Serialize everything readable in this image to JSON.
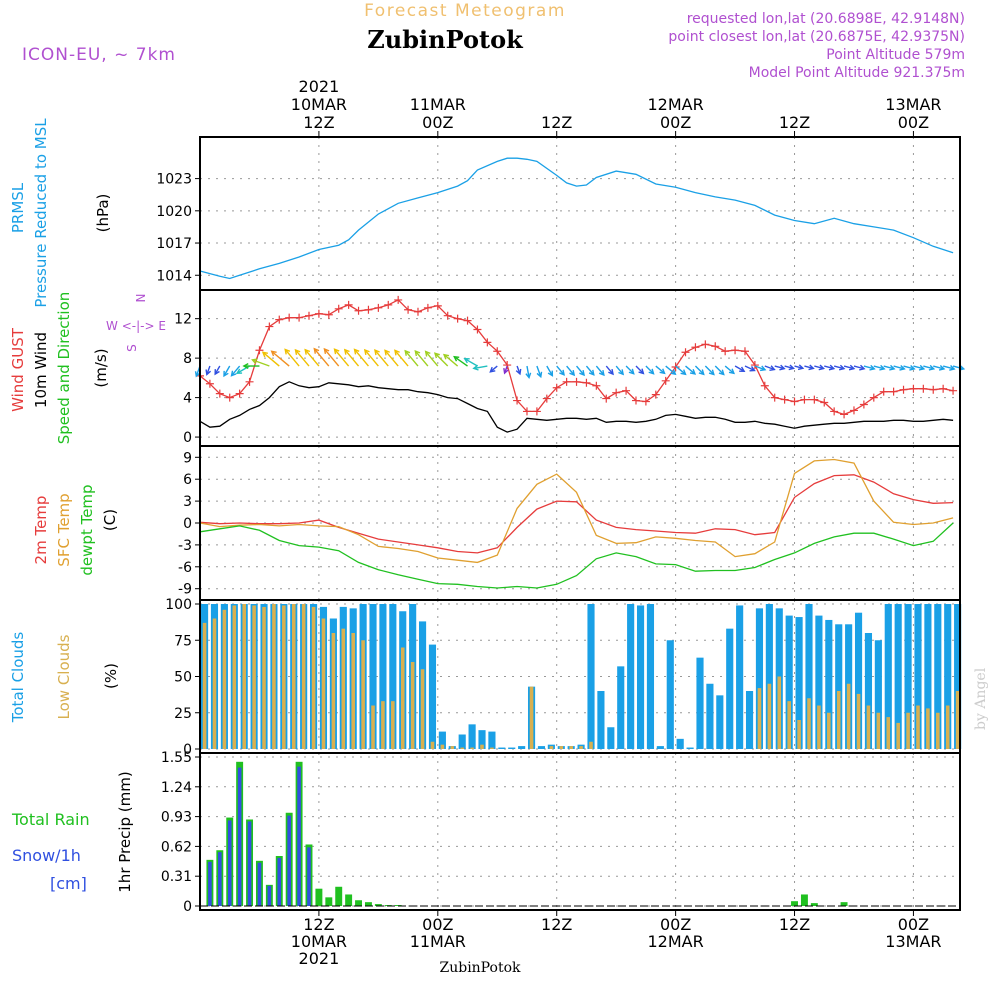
{
  "header": {
    "product": "Forecast Meteogram",
    "location": "ZubinPotok",
    "model": "ICON-EU, ~ 7km",
    "requested": "requested lon,lat (20.6898E, 42.9148N)",
    "closest": "point closest lon,lat (20.6875E, 42.9375N)",
    "altitude": "Point Altitude 579m",
    "model_altitude": "Model Point Altitude 921.375m",
    "footer": "ZubinPotok",
    "watermark": "by Angel"
  },
  "colors": {
    "pressure": "#1aa0e6",
    "gust": "#e63c3c",
    "wind": "#000000",
    "t2m": "#e63c3c",
    "sfc": "#e0a030",
    "dewpt": "#20c020",
    "total_clouds": "#1aa0e6",
    "low_clouds": "#d8b050",
    "rain": "#20c020",
    "snow": "#3050e0",
    "label_purple": "#b050d0",
    "label_tan": "#f0c070"
  },
  "time_axis": {
    "top_ticks": [
      {
        "hour": 12,
        "lines": [
          "2021",
          "10MAR",
          "12Z"
        ]
      },
      {
        "hour": 24,
        "lines": [
          "11MAR",
          "00Z"
        ]
      },
      {
        "hour": 36,
        "lines": [
          "12Z"
        ]
      },
      {
        "hour": 48,
        "lines": [
          "12MAR",
          "00Z"
        ]
      },
      {
        "hour": 60,
        "lines": [
          "12Z"
        ]
      },
      {
        "hour": 72,
        "lines": [
          "13MAR",
          "00Z"
        ]
      }
    ],
    "bottom_ticks": [
      {
        "hour": 12,
        "lines": [
          "12Z",
          "10MAR",
          "2021"
        ]
      },
      {
        "hour": 24,
        "lines": [
          "00Z",
          "11MAR"
        ]
      },
      {
        "hour": 36,
        "lines": [
          "12Z"
        ]
      },
      {
        "hour": 48,
        "lines": [
          "00Z",
          "12MAR"
        ]
      },
      {
        "hour": 60,
        "lines": [
          "12Z"
        ]
      },
      {
        "hour": 72,
        "lines": [
          "00Z",
          "13MAR"
        ]
      }
    ]
  },
  "panels": {
    "pressure": {
      "labels": [
        "PRMSL",
        "Pressure Reduced to MSL"
      ],
      "unit": "(hPa)"
    },
    "wind": {
      "labels": [
        "Wind GUST",
        "10m Wind",
        "Speed and Direction"
      ],
      "unit": "(m/s)",
      "compass": [
        "N",
        "W <-|-> E",
        "S"
      ]
    },
    "temp": {
      "labels": [
        "2m Temp",
        "SFC Temp",
        "dewpt Temp"
      ],
      "unit": "(C)"
    },
    "clouds": {
      "labels": [
        "Total Clouds",
        "Low Clouds"
      ],
      "unit": "(%)"
    },
    "precip": {
      "labels": [
        "Total  Rain",
        "Snow/1h",
        "[cm]"
      ],
      "unit": "1hr Precip (mm)"
    }
  },
  "chart_data": [
    {
      "type": "line",
      "title": "PRMSL Pressure Reduced to MSL",
      "ylabel": "(hPa)",
      "ylim": [
        1013,
        1026.5
      ],
      "yticks": [
        1014,
        1017,
        1020,
        1023
      ],
      "x_hours": [
        0,
        2,
        3,
        4,
        6,
        8,
        10,
        12,
        14,
        15,
        16,
        18,
        19,
        20,
        22,
        24,
        26,
        27,
        28,
        30,
        31,
        32,
        33,
        34,
        36,
        37,
        38,
        39,
        40,
        42,
        44,
        46,
        48,
        50,
        52,
        54,
        56,
        58,
        60,
        62,
        64,
        66,
        68,
        70,
        72,
        74,
        76
      ],
      "series": [
        {
          "name": "PRMSL",
          "values": [
            1014.4,
            1013.9,
            1013.7,
            1014.0,
            1014.6,
            1015.1,
            1015.7,
            1016.4,
            1016.8,
            1017.3,
            1018.2,
            1019.7,
            1020.2,
            1020.7,
            1021.2,
            1021.7,
            1022.3,
            1022.8,
            1023.8,
            1024.6,
            1024.9,
            1024.9,
            1024.8,
            1024.6,
            1023.3,
            1022.6,
            1022.3,
            1022.4,
            1023.1,
            1023.7,
            1023.4,
            1022.5,
            1022.2,
            1021.7,
            1021.3,
            1021.0,
            1020.5,
            1019.6,
            1019.1,
            1018.8,
            1019.3,
            1018.8,
            1018.5,
            1018.2,
            1017.5,
            1016.7,
            1016.1
          ]
        }
      ]
    },
    {
      "type": "line",
      "title": "Wind GUST / 10m Wind Speed and Direction",
      "ylabel": "(m/s)",
      "ylim": [
        -0.5,
        14.5
      ],
      "yticks": [
        0,
        4,
        8,
        12
      ],
      "x_hours": [
        0,
        1,
        2,
        3,
        4,
        5,
        6,
        7,
        8,
        9,
        10,
        11,
        12,
        13,
        14,
        15,
        16,
        17,
        18,
        19,
        20,
        21,
        22,
        23,
        24,
        25,
        26,
        27,
        28,
        29,
        30,
        31,
        32,
        33,
        34,
        35,
        36,
        37,
        38,
        39,
        40,
        41,
        42,
        43,
        44,
        45,
        46,
        47,
        48,
        49,
        50,
        51,
        52,
        53,
        54,
        55,
        56,
        57,
        58,
        59,
        60,
        61,
        62,
        63,
        64,
        65,
        66,
        67,
        68,
        69,
        70,
        71,
        72,
        73,
        74,
        75,
        76
      ],
      "series": [
        {
          "name": "Wind GUST",
          "values": [
            6.2,
            5.4,
            4.4,
            4.0,
            4.4,
            5.6,
            8.8,
            11.2,
            11.9,
            12.1,
            12.1,
            12.3,
            12.5,
            12.4,
            13.0,
            13.4,
            12.8,
            12.9,
            13.1,
            13.4,
            13.9,
            12.9,
            12.7,
            13.1,
            13.3,
            12.3,
            12.0,
            11.8,
            10.9,
            9.6,
            8.7,
            7.3,
            3.7,
            2.6,
            2.6,
            3.9,
            5.0,
            5.6,
            5.6,
            5.5,
            5.2,
            3.9,
            4.5,
            4.7,
            3.7,
            3.6,
            4.3,
            5.7,
            7.1,
            8.6,
            9.1,
            9.4,
            9.2,
            8.7,
            8.8,
            8.7,
            7.3,
            5.2,
            4.0,
            3.8,
            3.6,
            3.8,
            3.8,
            3.5,
            2.6,
            2.3,
            2.7,
            3.3,
            4.0,
            4.6,
            4.6,
            4.8,
            4.9,
            4.9,
            4.8,
            4.9,
            4.7
          ]
        },
        {
          "name": "10m Wind",
          "values": [
            1.6,
            1.0,
            1.1,
            1.8,
            2.2,
            2.8,
            3.2,
            4.0,
            5.1,
            5.6,
            5.2,
            5.0,
            5.1,
            5.5,
            5.4,
            5.3,
            5.1,
            5.2,
            5.0,
            4.9,
            4.8,
            4.8,
            4.6,
            4.5,
            4.3,
            4.0,
            3.9,
            3.4,
            2.9,
            2.6,
            1.0,
            0.5,
            0.8,
            1.9,
            1.8,
            1.7,
            1.8,
            1.9,
            1.9,
            1.8,
            1.9,
            1.5,
            1.6,
            1.6,
            1.5,
            1.6,
            1.8,
            2.2,
            2.3,
            2.1,
            1.9,
            2.0,
            2.0,
            1.8,
            1.5,
            1.5,
            1.6,
            1.4,
            1.3,
            1.1,
            0.9,
            1.1,
            1.2,
            1.3,
            1.4,
            1.4,
            1.5,
            1.6,
            1.6,
            1.6,
            1.7,
            1.7,
            1.6,
            1.6,
            1.7,
            1.8,
            1.7
          ]
        }
      ],
      "wind_direction_deg": [
        20,
        20,
        30,
        30,
        40,
        60,
        90,
        110,
        130,
        130,
        140,
        140,
        140,
        140,
        140,
        140,
        140,
        140,
        140,
        140,
        140,
        140,
        140,
        140,
        140,
        135,
        130,
        125,
        120,
        80,
        50,
        20,
        340,
        350,
        340,
        330,
        320,
        320,
        320,
        320,
        320,
        320,
        320,
        315,
        315,
        315,
        310,
        310,
        310,
        310,
        315,
        315,
        315,
        310,
        300,
        295,
        290,
        290,
        285,
        285,
        285,
        285,
        285,
        285,
        285,
        285,
        285,
        285,
        285,
        285,
        285,
        285,
        285,
        285,
        285,
        285,
        285
      ]
    },
    {
      "type": "line",
      "title": "2m Temp / SFC Temp / dewpt Temp",
      "ylabel": "(C)",
      "ylim": [
        -10,
        10
      ],
      "yticks": [
        -9,
        -6,
        -3,
        0,
        3,
        6,
        9
      ],
      "x_hours": [
        0,
        2,
        4,
        6,
        8,
        10,
        12,
        14,
        16,
        18,
        20,
        22,
        24,
        26,
        28,
        30,
        32,
        34,
        36,
        38,
        40,
        42,
        44,
        46,
        48,
        50,
        52,
        54,
        56,
        58,
        60,
        62,
        64,
        66,
        68,
        70,
        72,
        74,
        76
      ],
      "series": [
        {
          "name": "2m Temp",
          "values": [
            0.1,
            -0.1,
            0.0,
            -0.1,
            -0.1,
            0.0,
            0.4,
            -0.6,
            -1.4,
            -2.2,
            -2.6,
            -3.0,
            -3.4,
            -3.9,
            -4.1,
            -3.4,
            -0.6,
            1.9,
            3.0,
            2.9,
            0.4,
            -0.6,
            -0.9,
            -1.1,
            -1.3,
            -1.4,
            -0.8,
            -0.9,
            -1.6,
            -1.3,
            3.5,
            5.4,
            6.5,
            6.6,
            5.6,
            4.0,
            3.2,
            2.7,
            2.8
          ]
        },
        {
          "name": "SFC Temp",
          "values": [
            0.0,
            -0.5,
            -0.3,
            -0.2,
            -0.4,
            -0.2,
            -0.4,
            -0.5,
            -1.6,
            -3.2,
            -3.5,
            -3.9,
            -4.8,
            -5.1,
            -5.4,
            -4.4,
            2.0,
            5.3,
            6.7,
            4.2,
            -1.7,
            -2.8,
            -2.7,
            -1.9,
            -2.1,
            -2.4,
            -2.6,
            -4.6,
            -4.2,
            -2.6,
            6.8,
            8.5,
            8.7,
            8.2,
            3.0,
            0.1,
            -0.2,
            0.0,
            0.7
          ]
        },
        {
          "name": "dewpt Temp",
          "values": [
            -1.2,
            -0.8,
            -0.4,
            -1.0,
            -2.4,
            -3.1,
            -3.3,
            -3.8,
            -5.4,
            -6.4,
            -7.1,
            -7.7,
            -8.3,
            -8.4,
            -8.7,
            -8.9,
            -8.7,
            -8.9,
            -8.4,
            -7.2,
            -4.9,
            -4.1,
            -4.6,
            -5.6,
            -5.7,
            -6.6,
            -6.5,
            -6.5,
            -6.1,
            -5.0,
            -4.1,
            -2.8,
            -1.9,
            -1.4,
            -1.4,
            -2.2,
            -3.1,
            -2.5,
            0.0
          ]
        }
      ]
    },
    {
      "type": "bar",
      "title": "Total Clouds / Low Clouds",
      "ylabel": "(%)",
      "ylim": [
        0,
        100
      ],
      "yticks": [
        0,
        25,
        50,
        75,
        100
      ],
      "x_hours": [
        0,
        1,
        2,
        3,
        4,
        5,
        6,
        7,
        8,
        9,
        10,
        11,
        12,
        13,
        14,
        15,
        16,
        17,
        18,
        19,
        20,
        21,
        22,
        23,
        24,
        25,
        26,
        27,
        28,
        29,
        30,
        31,
        32,
        33,
        34,
        35,
        36,
        37,
        38,
        39,
        40,
        41,
        42,
        43,
        44,
        45,
        46,
        47,
        48,
        49,
        50,
        51,
        52,
        53,
        54,
        55,
        56,
        57,
        58,
        59,
        60,
        61,
        62,
        63,
        64,
        65,
        66,
        67,
        68,
        69,
        70,
        71,
        72,
        73,
        74,
        75,
        76
      ],
      "series": [
        {
          "name": "Total Clouds",
          "values": [
            100,
            100,
            100,
            100,
            100,
            100,
            100,
            100,
            100,
            100,
            100,
            100,
            98,
            90,
            98,
            97,
            100,
            100,
            100,
            100,
            95,
            100,
            88,
            72,
            12,
            2,
            10,
            17,
            13,
            12,
            1,
            1,
            2,
            43,
            2,
            3,
            2,
            2,
            3,
            100,
            40,
            15,
            57,
            100,
            99,
            100,
            2,
            75,
            7,
            1,
            63,
            45,
            37,
            83,
            99,
            40,
            97,
            100,
            97,
            92,
            91,
            100,
            92,
            89,
            86,
            86,
            94,
            80,
            75,
            100,
            100,
            100,
            100,
            100,
            100,
            100,
            100
          ]
        },
        {
          "name": "Low Clouds",
          "values": [
            87,
            90,
            96,
            99,
            100,
            99,
            98,
            100,
            99,
            100,
            100,
            98,
            90,
            80,
            83,
            80,
            75,
            30,
            33,
            33,
            70,
            60,
            55,
            5,
            3,
            2,
            1,
            1,
            3,
            1,
            0,
            0,
            0,
            43,
            0,
            2,
            2,
            2,
            2,
            5,
            0,
            0,
            0,
            0,
            0,
            0,
            0,
            0,
            0,
            0,
            0,
            0,
            0,
            0,
            0,
            0,
            42,
            45,
            50,
            33,
            20,
            35,
            30,
            25,
            40,
            45,
            38,
            30,
            25,
            22,
            18,
            25,
            30,
            28,
            25,
            30,
            40
          ]
        }
      ]
    },
    {
      "type": "bar",
      "title": "1hr Precip",
      "ylabel": "1hr Precip (mm)",
      "ylim": [
        0,
        1.55
      ],
      "yticks": [
        0,
        0.31,
        0.62,
        0.93,
        1.24,
        1.55
      ],
      "x_hours": [
        1,
        2,
        3,
        4,
        5,
        6,
        7,
        8,
        9,
        10,
        11,
        12,
        13,
        14,
        15,
        16,
        17,
        18,
        19,
        20,
        60,
        61,
        62,
        65
      ],
      "series": [
        {
          "name": "Total Rain",
          "values": [
            0.48,
            0.58,
            0.92,
            1.5,
            0.9,
            0.47,
            0.22,
            0.52,
            0.97,
            1.5,
            0.64,
            0.18,
            0.09,
            0.2,
            0.12,
            0.06,
            0.04,
            0.02,
            0.01,
            0.01,
            0.05,
            0.12,
            0.03,
            0.04
          ]
        },
        {
          "name": "Snow/1h",
          "values": [
            0.46,
            0.56,
            0.89,
            1.44,
            0.88,
            0.45,
            0.21,
            0.5,
            0.94,
            1.45,
            0.61,
            0,
            0,
            0,
            0,
            0,
            0,
            0,
            0,
            0,
            0,
            0,
            0,
            0
          ]
        }
      ]
    }
  ]
}
